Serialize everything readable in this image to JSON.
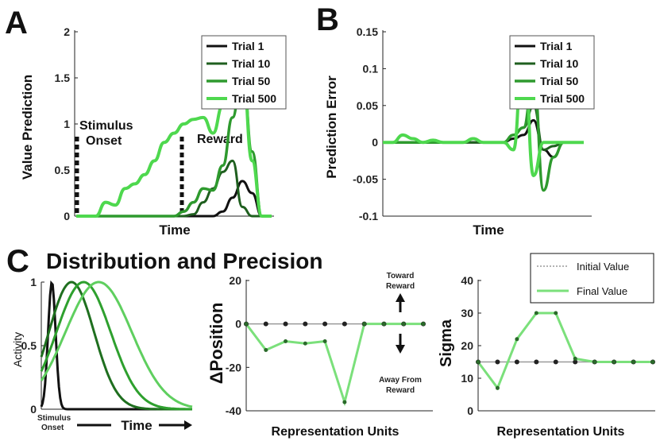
{
  "figure": {
    "panel_a": "A",
    "panel_b": "B",
    "panel_c": "C",
    "section_title": "Distribution and Precision"
  },
  "colors": {
    "trial1": "#111111",
    "trial10": "#1f5f1f",
    "trial50": "#2e9a2e",
    "trial500": "#4ed84e",
    "c_dark": "#1f6f1f",
    "c_mid": "#2ea02e",
    "c_light": "#5fcf5f",
    "initial": "#9a9a9a",
    "final": "#7be07b"
  },
  "chart_data": [
    {
      "type": "line",
      "panel": "A",
      "xlabel": "Time",
      "ylabel": "Value Prediction",
      "ylim": [
        0,
        2
      ],
      "yticks": [
        "0",
        "0.5",
        "1",
        "1.5",
        "2"
      ],
      "legend": "top-right",
      "annotations": {
        "stimulus": "Stimulus\nOnset",
        "stimulus_line1": "Stimulus",
        "stimulus_line2": "Onset",
        "reward": "Reward"
      },
      "x": [
        0,
        1,
        2,
        3,
        4,
        5,
        6,
        7,
        8,
        9,
        10,
        11,
        12,
        13,
        14,
        15,
        16,
        17,
        18,
        19,
        20
      ],
      "series": [
        {
          "name": "Trial 1",
          "values": [
            0,
            0,
            0,
            0,
            0,
            0,
            0,
            0,
            0,
            0,
            0,
            0,
            0,
            0,
            0,
            0.05,
            0.2,
            0.38,
            0.25,
            0,
            0
          ]
        },
        {
          "name": "Trial 10",
          "values": [
            0,
            0,
            0,
            0,
            0,
            0,
            0,
            0,
            0,
            0,
            0,
            0,
            0.02,
            0.15,
            0.3,
            0.48,
            0.6,
            0.1,
            0,
            0,
            0
          ]
        },
        {
          "name": "Trial 50",
          "values": [
            0,
            0,
            0,
            0,
            0,
            0,
            0,
            0,
            0,
            0,
            0,
            0.05,
            0.15,
            0.3,
            0.28,
            0.55,
            1.07,
            1.65,
            0.7,
            0,
            0
          ]
        },
        {
          "name": "Trial 500",
          "values": [
            0,
            0,
            0,
            0.15,
            0.12,
            0.3,
            0.35,
            0.45,
            0.6,
            0.8,
            0.9,
            1.0,
            1.05,
            1.07,
            0.9,
            1.2,
            1.4,
            1.65,
            0.6,
            0,
            0
          ]
        }
      ]
    },
    {
      "type": "line",
      "panel": "B",
      "xlabel": "Time",
      "ylabel": "Prediction Error",
      "ylim": [
        -0.1,
        0.15
      ],
      "yticks": [
        "-0.1",
        "-0.05",
        "0",
        "0.05",
        "0.1",
        "0.15"
      ],
      "legend": "top-right",
      "x": [
        0,
        1,
        2,
        3,
        4,
        5,
        6,
        7,
        8,
        9,
        10,
        11,
        12,
        13,
        14,
        15,
        16,
        17,
        18,
        19,
        20
      ],
      "series": [
        {
          "name": "Trial 1",
          "values": [
            0,
            0,
            0,
            0,
            0,
            0,
            0,
            0,
            0,
            0,
            0,
            0,
            0,
            0.005,
            0.01,
            0.03,
            -0.01,
            -0.02,
            0,
            0,
            0
          ]
        },
        {
          "name": "Trial 10",
          "values": [
            0,
            0,
            0,
            0,
            0,
            0,
            0,
            0,
            0,
            0,
            0,
            0,
            0,
            0.01,
            0.02,
            0.05,
            -0.01,
            -0.005,
            0,
            0,
            0
          ]
        },
        {
          "name": "Trial 50",
          "values": [
            0,
            0,
            0,
            0,
            0,
            0,
            0,
            0,
            0,
            0.005,
            0,
            0,
            0,
            0.01,
            0.02,
            0.09,
            -0.065,
            -0.02,
            0,
            0,
            0
          ]
        },
        {
          "name": "Trial 500",
          "values": [
            0,
            0,
            0.01,
            0.005,
            0,
            0.003,
            0,
            0,
            0,
            0.005,
            0,
            0,
            0,
            -0.01,
            0.14,
            -0.045,
            0,
            0,
            0,
            0,
            0
          ]
        }
      ]
    },
    {
      "type": "line",
      "panel": "C-left",
      "xlabel": "Time",
      "ylabel": "Activity",
      "ylim": [
        0,
        1
      ],
      "yticks": [
        "0",
        "0.5",
        "1"
      ],
      "annotations": {
        "stimulus": "Stimulus\nOnset",
        "stimulus_line1": "Stimulus",
        "stimulus_line2": "Onset"
      },
      "series": [
        {
          "name": "",
          "center": 0.07,
          "width": 0.025,
          "color": "trial1"
        },
        {
          "name": "",
          "center": 0.2,
          "width": 0.15,
          "color": "c_dark"
        },
        {
          "name": "",
          "center": 0.28,
          "width": 0.18,
          "color": "c_mid"
        },
        {
          "name": "",
          "center": 0.38,
          "width": 0.22,
          "color": "c_light"
        }
      ]
    },
    {
      "type": "line",
      "panel": "C-middle",
      "xlabel": "Representation Units",
      "ylabel": "ΔPosition",
      "ylim": [
        -40,
        20
      ],
      "yticks": [
        "-40",
        "-20",
        "0",
        "20"
      ],
      "annotations": {
        "toward_line1": "Toward",
        "toward_line2": "Reward",
        "away_line1": "Away From",
        "away_line2": "Reward"
      },
      "x": [
        1,
        2,
        3,
        4,
        5,
        6,
        7,
        8,
        9,
        10
      ],
      "series": [
        {
          "name": "Initial",
          "values": [
            0,
            0,
            0,
            0,
            0,
            0,
            0,
            0,
            0,
            0
          ]
        },
        {
          "name": "Final",
          "values": [
            0,
            -12,
            -8,
            -9,
            -8,
            -36,
            0,
            0,
            0,
            0
          ]
        }
      ]
    },
    {
      "type": "line",
      "panel": "C-right",
      "xlabel": "Representation Units",
      "ylabel": "Sigma",
      "ylim": [
        0,
        40
      ],
      "yticks": [
        "0",
        "10",
        "20",
        "30",
        "40"
      ],
      "legend": "top-right",
      "x": [
        1,
        2,
        3,
        4,
        5,
        6,
        7,
        8,
        9,
        10
      ],
      "series": [
        {
          "name": "Initial Value",
          "values": [
            15,
            15,
            15,
            15,
            15,
            15,
            15,
            15,
            15,
            15
          ]
        },
        {
          "name": "Final Value",
          "values": [
            15,
            7,
            22,
            30,
            30,
            16,
            15,
            15,
            15,
            15
          ]
        }
      ]
    }
  ]
}
